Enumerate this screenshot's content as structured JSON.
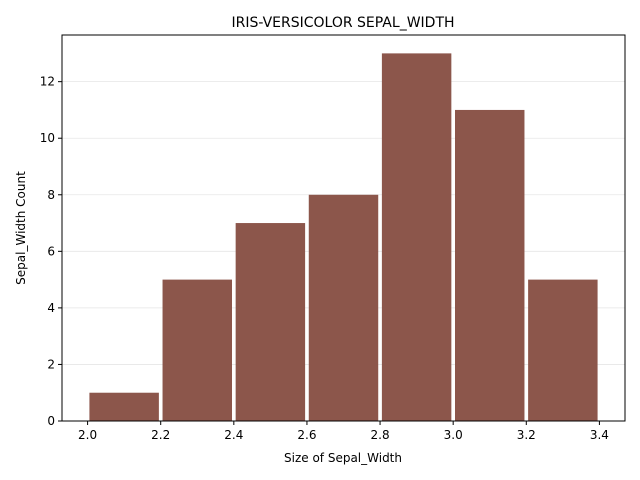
{
  "chart_data": {
    "type": "histogram",
    "title": "IRIS-VERSICOLOR SEPAL_WIDTH",
    "xlabel": "Size of Sepal_Width",
    "ylabel": "Sepal_Width Count",
    "bins": [
      2.0,
      2.2,
      2.4,
      2.6,
      2.8,
      3.0,
      3.2,
      3.4
    ],
    "values": [
      1,
      5,
      7,
      8,
      13,
      11,
      5
    ],
    "color": "#8c564b",
    "xlim": [
      1.93,
      3.47
    ],
    "ylim": [
      0,
      13.65
    ],
    "xticks": [
      {
        "value": 2.0,
        "label": "2.0"
      },
      2.2,
      2.4,
      2.6,
      2.8,
      {
        "value": 3.0,
        "label": "3.0"
      },
      3.2,
      3.4
    ],
    "yticks": [
      0,
      2,
      4,
      6,
      8,
      10,
      12
    ],
    "grid": true
  }
}
